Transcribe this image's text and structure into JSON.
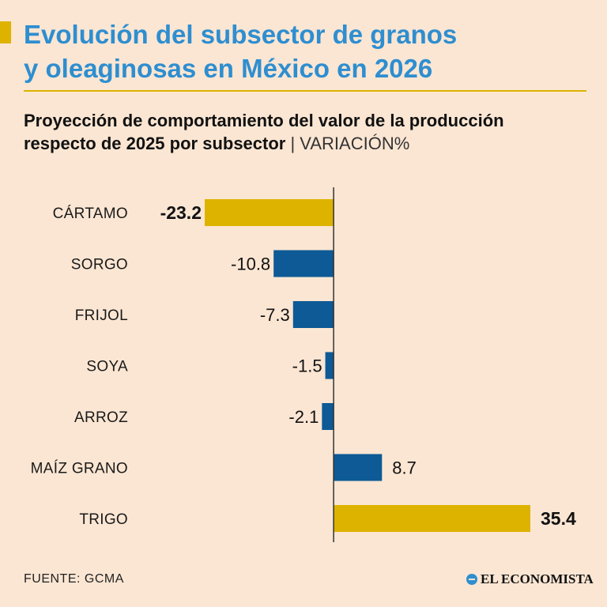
{
  "header": {
    "title_line1": "Evolución del subsector de granos",
    "title_line2": "y oleaginosas en México en 2026",
    "subtitle_line1": "Proyección de comportamiento del valor de la producción",
    "subtitle_line2": "respecto de 2025 por subsector",
    "unit_label": "| VARIACIÓN%"
  },
  "footer": {
    "source": "FUENTE: GCMA",
    "brand": "EL ECONOMISTA"
  },
  "colors": {
    "background": "#fbe6d3",
    "title": "#2e8ed0",
    "highlight": "#ddb300",
    "bar": "#0d5a96",
    "axis": "#333333"
  },
  "chart_data": {
    "type": "bar",
    "orientation": "horizontal",
    "title": "Proyección de comportamiento del valor de la producción respecto de 2025 por subsector",
    "xlabel": "VARIACIÓN%",
    "ylabel": "",
    "categories": [
      "CÁRTAMO",
      "SORGO",
      "FRIJOL",
      "SOYA",
      "ARROZ",
      "MAÍZ GRANO",
      "TRIGO"
    ],
    "values": [
      -23.2,
      -10.8,
      -7.3,
      -1.5,
      -2.1,
      8.7,
      35.4
    ],
    "labels": [
      "-23.2",
      "-10.8",
      "-7.3",
      "-1.5",
      "-2.1",
      "8.7",
      "35.4"
    ],
    "highlighted": [
      true,
      false,
      false,
      false,
      false,
      false,
      true
    ],
    "xlim": [
      -23.2,
      35.4
    ],
    "grid": false,
    "legend": "none"
  }
}
